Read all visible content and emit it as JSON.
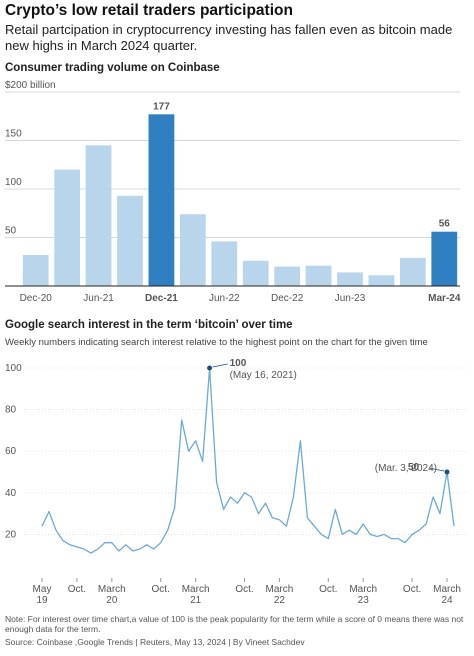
{
  "title": "Crypto’s low retail traders participation",
  "subtitle": "Retail partcipation in cryptocurrency investing has fallen even as bitcoin made new highs in March 2024 quarter.",
  "note": "Note: For interest over time chart,a value of 100 is the peak popularity for the term while a score of 0 means there was not enough data for the term.",
  "source": "Source: Coinbase ,Google Trends  | Reuters, May 13, 2024 | By Vineet Sachdev",
  "chart_data": [
    {
      "type": "bar",
      "title": "Consumer trading volume on Coinbase",
      "categories": [
        "Dec-20",
        null,
        "Jun-21",
        null,
        "Dec-21",
        null,
        "Jun-22",
        null,
        "Dec-22",
        null,
        "Jun-23",
        null,
        null,
        "Mar-24"
      ],
      "values": [
        32,
        120,
        145,
        93,
        177,
        74,
        46,
        26,
        20,
        21,
        14,
        11,
        29,
        56
      ],
      "value_labels": [
        null,
        null,
        null,
        null,
        "177",
        null,
        null,
        null,
        null,
        null,
        null,
        null,
        null,
        "56"
      ],
      "colors": [
        "#b9d5eb",
        "#b9d5eb",
        "#b9d5eb",
        "#b9d5eb",
        "#2f7fc1",
        "#b9d5eb",
        "#b9d5eb",
        "#b9d5eb",
        "#b9d5eb",
        "#b9d5eb",
        "#b9d5eb",
        "#b9d5eb",
        "#b9d5eb",
        "#2f7fc1"
      ],
      "ylim": [
        0,
        200
      ],
      "yticks": [
        50,
        100,
        150,
        {
          "value": 200,
          "label": "$200 billion"
        }
      ],
      "grid": true
    },
    {
      "type": "line",
      "title": "Google search interest in the term ‘bitcoin’ over time",
      "subtitle": "Weekly numbers indicating search interest relative to the highest point on the chart for the given time",
      "x": [
        "2019-05",
        "2019-06",
        "2019-07",
        "2019-08",
        "2019-09",
        "2019-10",
        "2019-11",
        "2019-12",
        "2020-01",
        "2020-02",
        "2020-03",
        "2020-04",
        "2020-05",
        "2020-06",
        "2020-07",
        "2020-08",
        "2020-09",
        "2020-10",
        "2020-11",
        "2020-12",
        "2021-01",
        "2021-02",
        "2021-03",
        "2021-04",
        "2021-05",
        "2021-06",
        "2021-07",
        "2021-08",
        "2021-09",
        "2021-10",
        "2021-11",
        "2021-12",
        "2022-01",
        "2022-02",
        "2022-03",
        "2022-04",
        "2022-05",
        "2022-06",
        "2022-07",
        "2022-08",
        "2022-09",
        "2022-10",
        "2022-11",
        "2022-12",
        "2023-01",
        "2023-02",
        "2023-03",
        "2023-04",
        "2023-05",
        "2023-06",
        "2023-07",
        "2023-08",
        "2023-09",
        "2023-10",
        "2023-11",
        "2023-12",
        "2024-01",
        "2024-02",
        "2024-03",
        "2024-04"
      ],
      "series": [
        {
          "name": "bitcoin",
          "color": "#6ea8d6",
          "values": [
            24,
            31,
            22,
            17,
            15,
            14,
            13,
            11,
            13,
            16,
            16,
            12,
            15,
            12,
            13,
            15,
            13,
            16,
            22,
            33,
            75,
            60,
            65,
            55,
            100,
            45,
            32,
            38,
            35,
            40,
            38,
            30,
            35,
            28,
            27,
            24,
            38,
            65,
            28,
            24,
            20,
            18,
            32,
            20,
            22,
            20,
            25,
            20,
            19,
            20,
            18,
            18,
            16,
            20,
            22,
            25,
            38,
            30,
            50,
            24
          ],
          "value_labels": [
            null,
            null,
            null,
            null,
            null,
            null,
            null,
            null,
            null,
            null,
            null,
            null,
            null,
            null,
            null,
            null,
            null,
            null,
            null,
            null,
            null,
            null,
            null,
            null,
            "100",
            null,
            null,
            null,
            null,
            null,
            null,
            null,
            null,
            null,
            null,
            null,
            null,
            null,
            null,
            null,
            null,
            null,
            null,
            null,
            null,
            null,
            null,
            null,
            null,
            null,
            null,
            null,
            null,
            null,
            null,
            null,
            null,
            null,
            "50",
            null
          ],
          "value_notes": [
            null,
            null,
            null,
            null,
            null,
            null,
            null,
            null,
            null,
            null,
            null,
            null,
            null,
            null,
            null,
            null,
            null,
            null,
            null,
            null,
            null,
            null,
            null,
            null,
            "(May 16, 2021)",
            null,
            null,
            null,
            null,
            null,
            null,
            null,
            null,
            null,
            null,
            null,
            null,
            null,
            null,
            null,
            null,
            null,
            null,
            null,
            null,
            null,
            null,
            null,
            null,
            null,
            null,
            null,
            null,
            null,
            null,
            null,
            null,
            null,
            "(Mar. 3, 2024)",
            null
          ]
        }
      ],
      "xlim": [
        "2019-05",
        "2024-04"
      ],
      "xticks": [
        {
          "value": "2019-05",
          "label": "May 19"
        },
        {
          "value": "2019-10",
          "label": "Oct."
        },
        {
          "value": "2020-03",
          "label": "March 20"
        },
        {
          "value": "2020-10",
          "label": "Oct."
        },
        {
          "value": "2021-03",
          "label": "March 21"
        },
        {
          "value": "2021-10",
          "label": "Oct."
        },
        {
          "value": "2022-03",
          "label": "March 22"
        },
        {
          "value": "2022-10",
          "label": "Oct."
        },
        {
          "value": "2023-03",
          "label": "March 23"
        },
        {
          "value": "2023-10",
          "label": "Oct."
        },
        {
          "value": "2024-03",
          "label": "March 24"
        }
      ],
      "ylim": [
        0,
        100
      ],
      "yticks": [
        20,
        40,
        60,
        80,
        100
      ],
      "grid": true
    }
  ]
}
